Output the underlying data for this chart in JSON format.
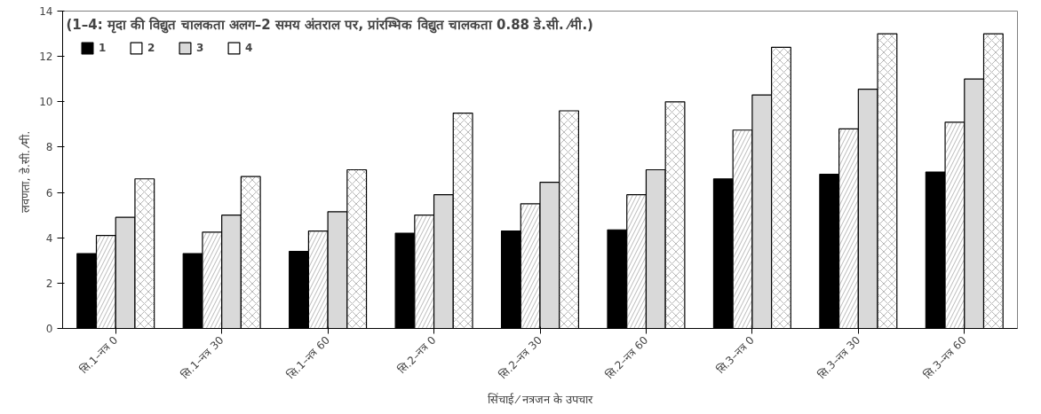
{
  "chart_data": {
    "type": "bar",
    "title": "(1–4: मृदा की विद्युत चालकता अलग–2 समय अंतराल पर, प्रांरम्भिक विद्युत चालकता 0.88 डे.सी. ⁄मी.)",
    "xlabel": "सिंचाई ⁄ नत्रजन के उपचार",
    "ylabel": "लवणता,  डे.सी. ⁄मी.",
    "categories": [
      "सि.1–नत्र 0",
      "सि.1–नत्र 30",
      "सि.1–नत्र 60",
      "सि.2–नत्र 0",
      "सि.2–नत्र 30",
      "सि.2–नत्र 60",
      "सि.3–नत्र 0",
      "सि.3–नत्र 30",
      "सि.3–नत्र 60"
    ],
    "series": [
      {
        "name": "1",
        "color": "#000000",
        "values": [
          3.3,
          3.3,
          3.4,
          4.2,
          4.3,
          4.35,
          6.6,
          6.8,
          6.9
        ]
      },
      {
        "name": "2",
        "color": "#ffffff",
        "values": [
          4.1,
          4.25,
          4.3,
          5.0,
          5.5,
          5.9,
          8.75,
          8.8,
          9.1
        ]
      },
      {
        "name": "3",
        "color": "#d9d9d9",
        "values": [
          4.9,
          5.0,
          5.15,
          5.9,
          6.45,
          7.0,
          10.3,
          10.55,
          11.0
        ]
      },
      {
        "name": "4",
        "color": "#ffffff",
        "values": [
          6.6,
          6.7,
          7.0,
          9.5,
          9.6,
          10.0,
          12.4,
          13.0,
          13.0
        ]
      }
    ],
    "ylim": [
      0,
      14
    ],
    "yticks": [
      0,
      2,
      4,
      6,
      8,
      10,
      12,
      14
    ],
    "grid": false,
    "legend": "top left"
  }
}
